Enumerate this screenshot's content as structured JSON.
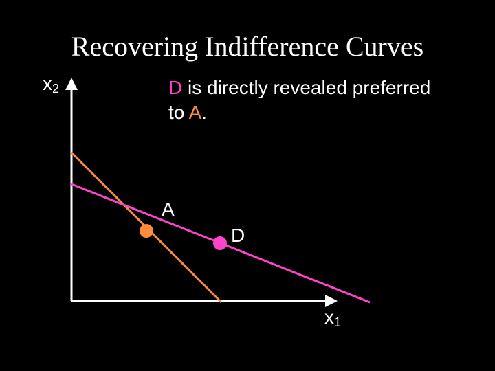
{
  "title": "Recovering Indifference Curves",
  "caption": {
    "line1_point": "D",
    "line1_rest": " is directly revealed preferred",
    "line2_prefix": "to ",
    "line2_point": "A",
    "line2_suffix": "."
  },
  "axes": {
    "x_label": "x",
    "x_sub": "1",
    "y_label": "x",
    "y_sub": "2"
  },
  "points": {
    "a_label": "A",
    "d_label": "D"
  },
  "colors": {
    "background": "#000000",
    "axes": "#ffffff",
    "budget_a": "#ff8c3c",
    "budget_d": "#ff44cc",
    "point_a": "#ff8c3c",
    "point_d": "#ff44cc"
  }
}
